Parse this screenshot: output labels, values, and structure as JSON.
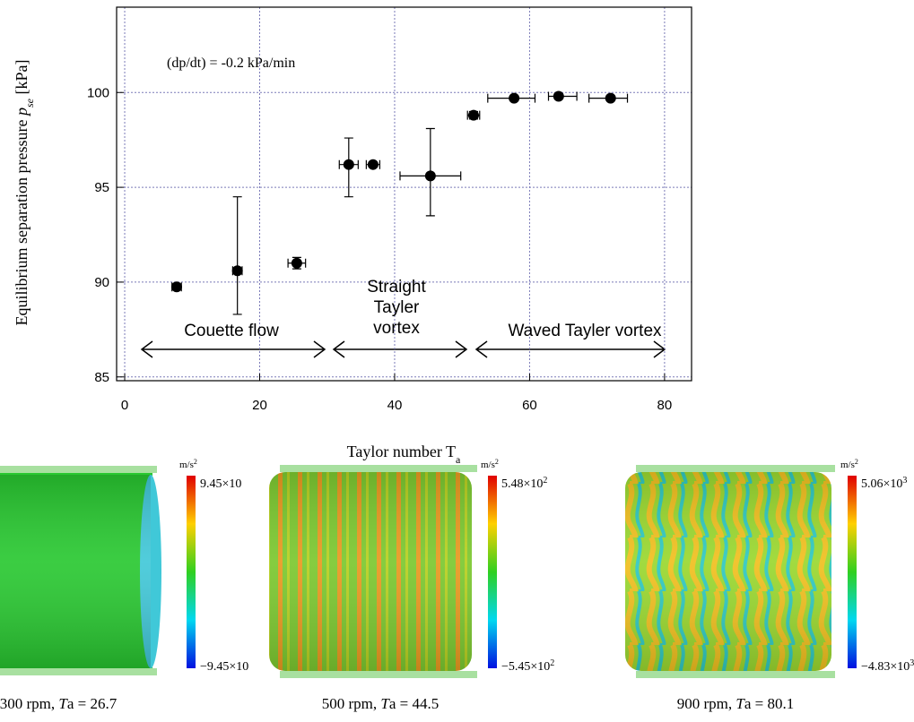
{
  "chart_data": {
    "type": "errorbar-scatter",
    "annotation": "(dp/dt) = -0.2 kPa/min",
    "x_label": [
      "Taylor number T",
      "a"
    ],
    "y_label": [
      "Equilibrium separation pressure ",
      "p",
      "se",
      " [kPa]"
    ],
    "regions": [
      "Couette flow",
      "Straight",
      "Tayler",
      "vortex",
      "Waved Tayler vortex"
    ],
    "x": [
      7.7,
      16.7,
      25.5,
      33.2,
      36.8,
      45.3,
      51.7,
      57.7,
      64.3,
      72.0
    ],
    "values": [
      89.75,
      90.6,
      91.0,
      96.2,
      96.2,
      95.6,
      98.8,
      99.7,
      99.8,
      99.7
    ],
    "x_low": [
      7.0,
      16.0,
      24.2,
      31.8,
      35.8,
      40.8,
      50.8,
      53.8,
      62.8,
      68.8
    ],
    "x_high": [
      8.4,
      17.4,
      26.8,
      34.6,
      37.8,
      49.8,
      52.6,
      60.8,
      67.0,
      74.5
    ],
    "y_low": [
      89.6,
      88.3,
      90.7,
      94.5,
      96.1,
      93.5,
      98.6,
      99.6,
      99.7,
      99.6
    ],
    "y_high": [
      89.9,
      94.5,
      91.3,
      97.6,
      96.3,
      98.1,
      99.0,
      99.8,
      99.9,
      99.8
    ],
    "color": "#000000",
    "xlim": [
      -1.2,
      84
    ],
    "ylim": [
      84.8,
      104.5
    ],
    "xticks": [
      0,
      20,
      40,
      60,
      80
    ],
    "yticks": [
      85,
      90,
      95,
      100
    ],
    "grid": true
  },
  "panels": [
    {
      "unit": [
        "m/s",
        "2"
      ],
      "max": [
        "9.45×10",
        ""
      ],
      "min": [
        "−9.45×10",
        ""
      ],
      "caption": [
        "300 rpm, ",
        "T",
        "a = 26.7"
      ]
    },
    {
      "unit": [
        "m/s",
        "2"
      ],
      "max": [
        "5.48×10",
        "2"
      ],
      "min": [
        "−5.45×10",
        "2"
      ],
      "caption": [
        "500 rpm, ",
        "T",
        "a = 44.5"
      ]
    },
    {
      "unit": [
        "m/s",
        "2"
      ],
      "max": [
        "5.06×10",
        "3"
      ],
      "min": [
        "−4.83×10",
        "3"
      ],
      "caption": [
        "900 rpm, ",
        "T",
        "a = 80.1"
      ]
    }
  ]
}
